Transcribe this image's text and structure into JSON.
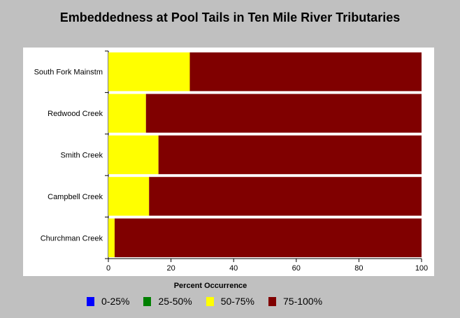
{
  "chart_data": {
    "type": "bar",
    "orientation": "horizontal",
    "stacked": true,
    "title": "Embeddedness at Pool Tails in Ten Mile River Tributaries",
    "xlabel": "Percent Occurrence",
    "ylabel": "",
    "xlim": [
      0,
      100
    ],
    "xticks": [
      "0",
      "20",
      "40",
      "60",
      "80",
      "100"
    ],
    "categories": [
      "South Fork Mainstm",
      "Redwood Creek",
      "Smith Creek",
      "Campbell Creek",
      "Churchman Creek"
    ],
    "series": [
      {
        "name": "0-25%",
        "color": "#0000ff",
        "values": [
          0,
          0,
          0,
          0,
          0
        ]
      },
      {
        "name": "25-50%",
        "color": "#008000",
        "values": [
          0,
          0,
          0,
          0,
          0
        ]
      },
      {
        "name": "50-75%",
        "color": "#ffff00",
        "values": [
          26,
          12,
          16,
          13,
          2
        ]
      },
      {
        "name": "75-100%",
        "color": "#800000",
        "values": [
          74,
          88,
          84,
          87,
          98
        ]
      }
    ],
    "legend_position": "bottom",
    "grid": false
  }
}
